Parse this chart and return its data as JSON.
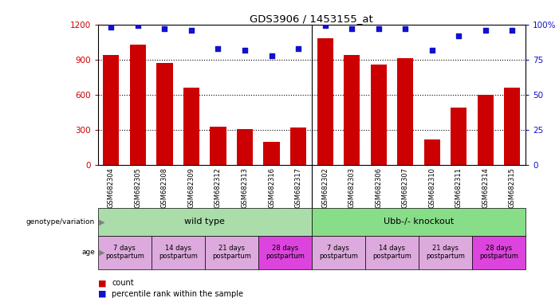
{
  "title": "GDS3906 / 1453155_at",
  "samples": [
    "GSM682304",
    "GSM682305",
    "GSM682308",
    "GSM682309",
    "GSM682312",
    "GSM682313",
    "GSM682316",
    "GSM682317",
    "GSM682302",
    "GSM682303",
    "GSM682306",
    "GSM682307",
    "GSM682310",
    "GSM682311",
    "GSM682314",
    "GSM682315"
  ],
  "counts": [
    940,
    1030,
    870,
    660,
    330,
    310,
    200,
    320,
    1080,
    940,
    860,
    910,
    220,
    490,
    600,
    660
  ],
  "percentiles": [
    98,
    99,
    97,
    96,
    83,
    82,
    78,
    83,
    99,
    97,
    97,
    97,
    82,
    92,
    96,
    96
  ],
  "ylim_left": [
    0,
    1200
  ],
  "ylim_right": [
    0,
    100
  ],
  "yticks_left": [
    0,
    300,
    600,
    900,
    1200
  ],
  "yticks_right": [
    0,
    25,
    50,
    75,
    100
  ],
  "bar_color": "#cc0000",
  "dot_color": "#1111cc",
  "grid_color": "#000000",
  "bg_color": "#ffffff",
  "tick_bg": "#bbbbbb",
  "genotype_wt_color": "#aaddaa",
  "genotype_ko_color": "#88dd88",
  "age_lavender": "#ddaadd",
  "age_magenta": "#dd44dd",
  "left_label_color": "#cc0000",
  "right_label_color": "#1111cc",
  "age_groups": [
    {
      "label": "7 days\npostpartum",
      "start": 0,
      "end": 2,
      "color_idx": 0
    },
    {
      "label": "14 days\npostpartum",
      "start": 2,
      "end": 4,
      "color_idx": 0
    },
    {
      "label": "21 days\npostpartum",
      "start": 4,
      "end": 6,
      "color_idx": 0
    },
    {
      "label": "28 days\npostpartum",
      "start": 6,
      "end": 8,
      "color_idx": 1
    },
    {
      "label": "7 days\npostpartum",
      "start": 8,
      "end": 10,
      "color_idx": 0
    },
    {
      "label": "14 days\npostpartum",
      "start": 10,
      "end": 12,
      "color_idx": 0
    },
    {
      "label": "21 days\npostpartum",
      "start": 12,
      "end": 14,
      "color_idx": 0
    },
    {
      "label": "28 days\npostpartum",
      "start": 14,
      "end": 16,
      "color_idx": 1
    }
  ]
}
